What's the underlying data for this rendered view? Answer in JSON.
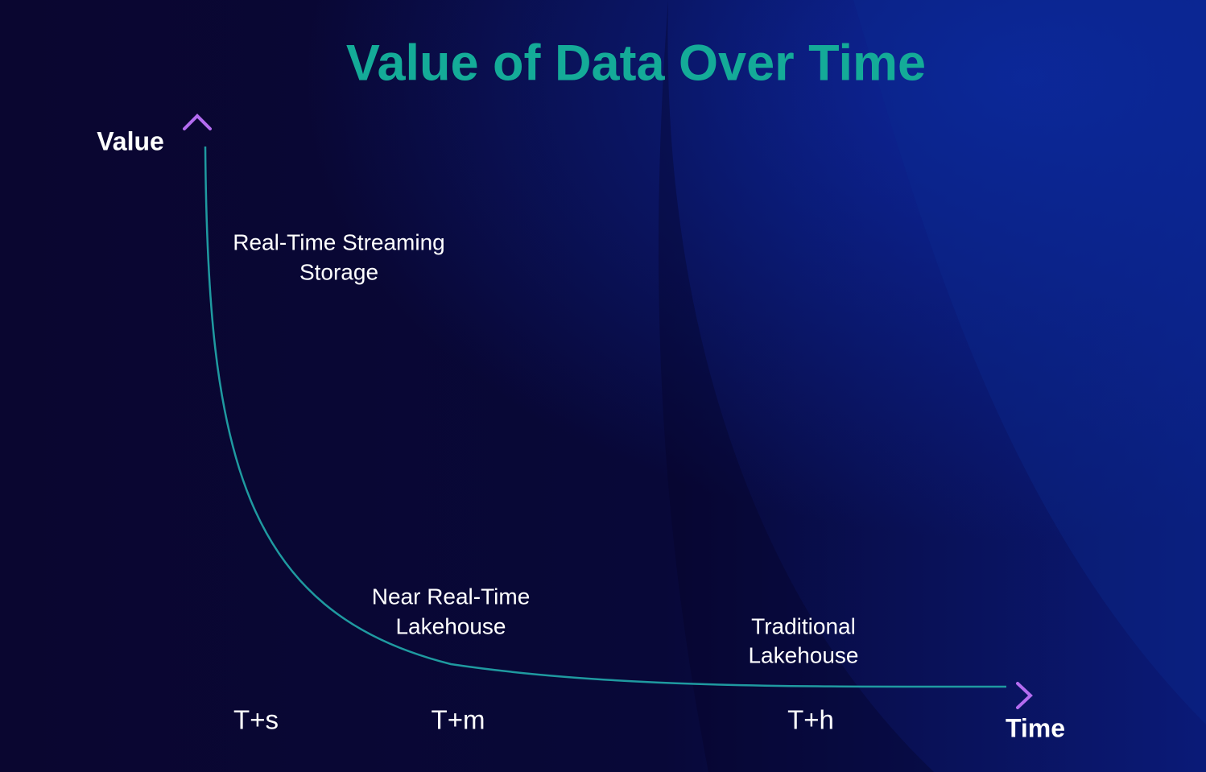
{
  "title": "Value of Data Over Time",
  "y_axis_label": "Value",
  "x_axis_label": "Time",
  "annotations": [
    {
      "lines": [
        "Real-Time Streaming",
        "Storage"
      ]
    },
    {
      "lines": [
        "Near Real-Time",
        "Lakehouse"
      ]
    },
    {
      "lines": [
        "Traditional",
        "Lakehouse"
      ]
    }
  ],
  "time_labels": [
    "T+s",
    "T+m",
    "T+h"
  ]
}
